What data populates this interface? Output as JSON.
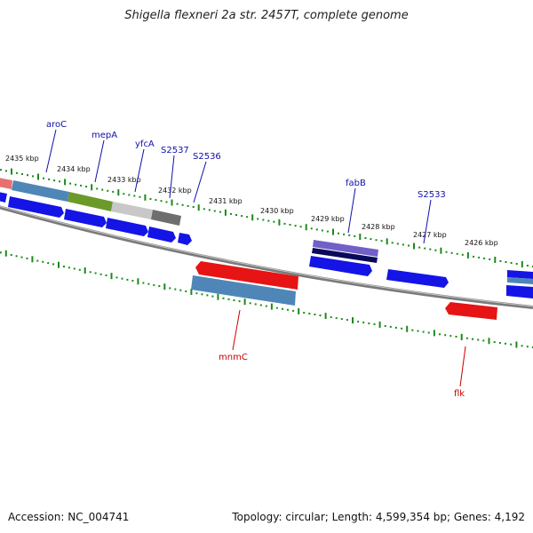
{
  "title": "Shigella flexneri 2a str. 2457T, complete genome",
  "footer": {
    "accession": "Accession: NC_004741",
    "stats": "Topology: circular; Length: 4,599,354 bp; Genes: 4,192"
  },
  "colors": {
    "backbone": "#7a7a7a",
    "tick": "#1a8a1a",
    "forward_label": "#1010aa",
    "reverse_label": "#cc0000",
    "gene_blue": "#1414e6",
    "gene_red": "#e61414"
  },
  "kbp_labels": [
    "2435 kbp",
    "2434 kbp",
    "2433 kbp",
    "2432 kbp",
    "2431 kbp",
    "2430 kbp",
    "2429 kbp",
    "2428 kbp",
    "2427 kbp",
    "2426 kbp"
  ],
  "gene_labels": {
    "forward": [
      "aroC",
      "mepA",
      "yfcA",
      "S2537",
      "S2536",
      "fabB",
      "S2533"
    ],
    "reverse": [
      "mnmC",
      "flk"
    ]
  }
}
